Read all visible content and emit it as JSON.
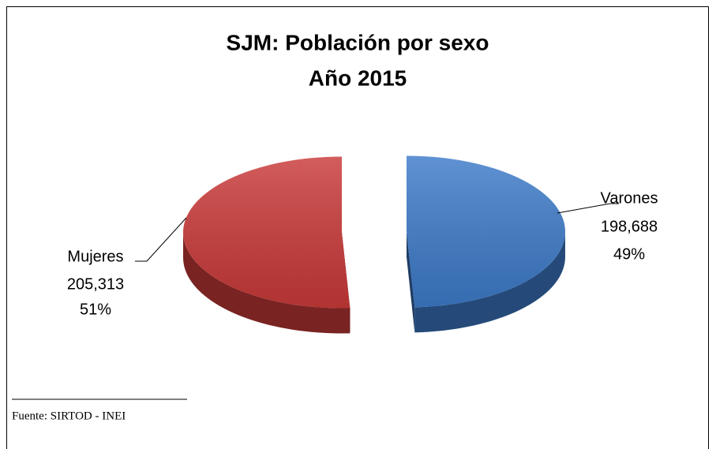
{
  "chart_data": {
    "type": "pie",
    "title": "SJM: Población por sexo",
    "subtitle": "Año 2015",
    "categories": [
      "Varones",
      "Mujeres"
    ],
    "values": [
      198688,
      205313
    ],
    "value_labels": [
      "198,688",
      "205,313"
    ],
    "percentages": [
      49,
      51
    ],
    "percentage_labels": [
      "49%",
      "51%"
    ],
    "colors": [
      "#3d7bc9",
      "#c93a39"
    ],
    "source": "Fuente: SIRTOD - INEI"
  }
}
